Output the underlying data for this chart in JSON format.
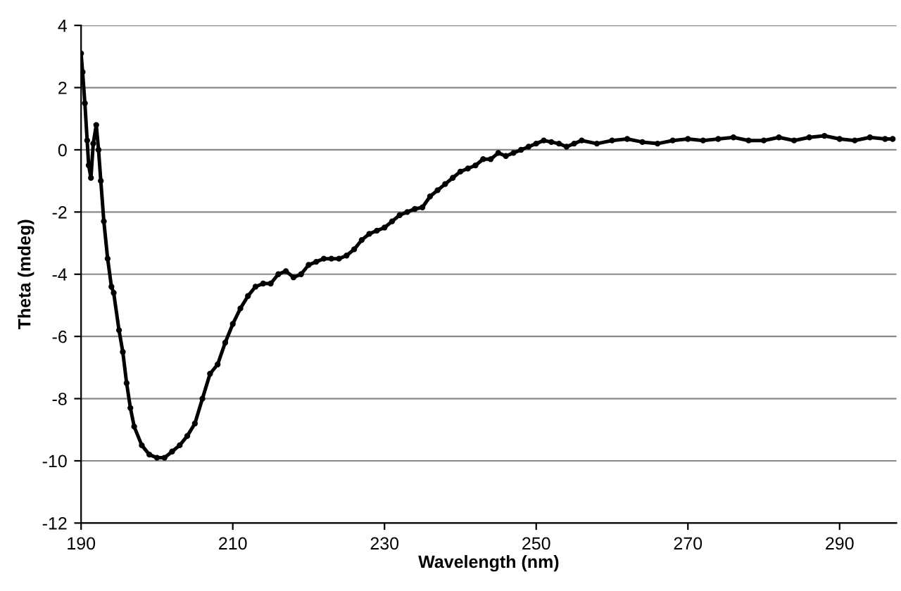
{
  "chart_data": {
    "type": "line",
    "xlabel": "Wavelength (nm)",
    "ylabel": "Theta (mdeg)",
    "x": [
      190,
      190.2,
      190.5,
      190.8,
      191,
      191.3,
      191.6,
      192,
      192.3,
      192.6,
      193,
      193.5,
      194,
      194.3,
      195,
      195.5,
      196,
      196.5,
      197,
      198,
      199,
      200,
      201,
      202,
      203,
      204,
      205,
      206,
      207,
      208,
      209,
      210,
      211,
      212,
      213,
      214,
      215,
      216,
      217,
      218,
      219,
      220,
      221,
      222,
      223,
      224,
      225,
      226,
      227,
      228,
      229,
      230,
      231,
      232,
      233,
      234,
      235,
      236,
      237,
      238,
      239,
      240,
      241,
      242,
      243,
      244,
      245,
      246,
      247,
      248,
      249,
      250,
      251,
      252,
      253,
      254,
      255,
      256,
      258,
      260,
      262,
      264,
      266,
      268,
      270,
      272,
      274,
      276,
      278,
      280,
      282,
      284,
      286,
      288,
      290,
      292,
      294,
      296,
      297
    ],
    "series": [
      {
        "color": "#000000",
        "values": [
          3.1,
          2.5,
          1.5,
          0.3,
          -0.5,
          -0.9,
          0.2,
          0.8,
          0,
          -1,
          -2.3,
          -3.5,
          -4.4,
          -4.6,
          -5.8,
          -6.5,
          -7.5,
          -8.3,
          -8.9,
          -9.5,
          -9.8,
          -9.9,
          -9.9,
          -9.7,
          -9.5,
          -9.2,
          -8.8,
          -8.0,
          -7.2,
          -6.9,
          -6.2,
          -5.6,
          -5.1,
          -4.7,
          -4.4,
          -4.3,
          -4.3,
          -4.0,
          -3.9,
          -4.1,
          -4.0,
          -3.7,
          -3.6,
          -3.5,
          -3.5,
          -3.5,
          -3.4,
          -3.2,
          -2.9,
          -2.7,
          -2.6,
          -2.5,
          -2.3,
          -2.1,
          -2.0,
          -1.9,
          -1.85,
          -1.5,
          -1.3,
          -1.1,
          -0.9,
          -0.7,
          -0.6,
          -0.5,
          -0.3,
          -0.3,
          -0.1,
          -0.2,
          -0.1,
          0.0,
          0.1,
          0.2,
          0.3,
          0.25,
          0.2,
          0.1,
          0.2,
          0.3,
          0.2,
          0.3,
          0.35,
          0.25,
          0.2,
          0.3,
          0.35,
          0.3,
          0.35,
          0.4,
          0.3,
          0.3,
          0.4,
          0.3,
          0.4,
          0.45,
          0.35,
          0.3,
          0.4,
          0.35,
          0.35
        ]
      }
    ],
    "xlim": [
      190,
      297.5
    ],
    "ylim": [
      -12,
      4
    ],
    "xticks": [
      190,
      210,
      230,
      250,
      270,
      290
    ],
    "yticks": [
      -12,
      -10,
      -8,
      -6,
      -4,
      -2,
      0,
      2,
      4
    ],
    "grid": "y",
    "marker": "circle",
    "line_style": "solid"
  }
}
